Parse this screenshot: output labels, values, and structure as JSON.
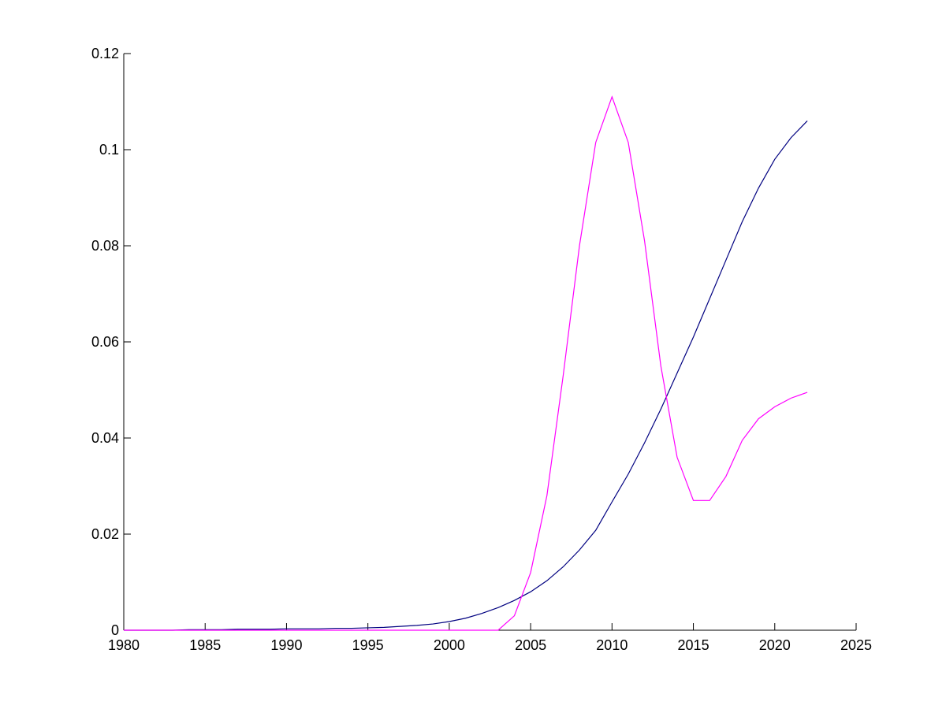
{
  "chart_data": {
    "type": "line",
    "x": [
      1980,
      1981,
      1982,
      1983,
      1984,
      1985,
      1986,
      1987,
      1988,
      1989,
      1990,
      1991,
      1992,
      1993,
      1994,
      1995,
      1996,
      1997,
      1998,
      1999,
      2000,
      2001,
      2002,
      2003,
      2004,
      2005,
      2006,
      2007,
      2008,
      2009,
      2010,
      2011,
      2012,
      2013,
      2014,
      2015,
      2016,
      2017,
      2018,
      2019,
      2020,
      2021,
      2022
    ],
    "series": [
      {
        "color": "#000080",
        "values": [
          0,
          0,
          0,
          0,
          0.0001,
          0.0001,
          0.0001,
          0.0002,
          0.0002,
          0.0002,
          0.0003,
          0.0003,
          0.0003,
          0.0004,
          0.0004,
          0.0005,
          0.0006,
          0.0008,
          0.001,
          0.0013,
          0.0018,
          0.0025,
          0.0035,
          0.0047,
          0.0062,
          0.008,
          0.0103,
          0.0132,
          0.0167,
          0.0208,
          0.0267,
          0.0325,
          0.039,
          0.046,
          0.0535,
          0.061,
          0.069,
          0.077,
          0.085,
          0.092,
          0.098,
          0.1025,
          0.106
        ]
      },
      {
        "color": "#ff00ff",
        "values": [
          0,
          0,
          0,
          0,
          0,
          0,
          0,
          0,
          0,
          0,
          0,
          0,
          0,
          0,
          0,
          0,
          0,
          0,
          0,
          0,
          0,
          0,
          0,
          0,
          0.003,
          0.012,
          0.028,
          0.053,
          0.08,
          0.1015,
          0.111,
          0.1015,
          0.081,
          0.055,
          0.036,
          0.027,
          0.027,
          0.032,
          0.0395,
          0.044,
          0.0465,
          0.0483,
          0.0495
        ]
      }
    ],
    "xlim": [
      1980,
      2025
    ],
    "xticks": [
      1980,
      1985,
      1990,
      1995,
      2000,
      2005,
      2010,
      2015,
      2020,
      2025
    ],
    "ylim": [
      0,
      0.12
    ],
    "yticks": [
      0,
      0.02,
      0.04,
      0.06,
      0.08,
      0.1,
      0.12
    ],
    "grid": false
  }
}
